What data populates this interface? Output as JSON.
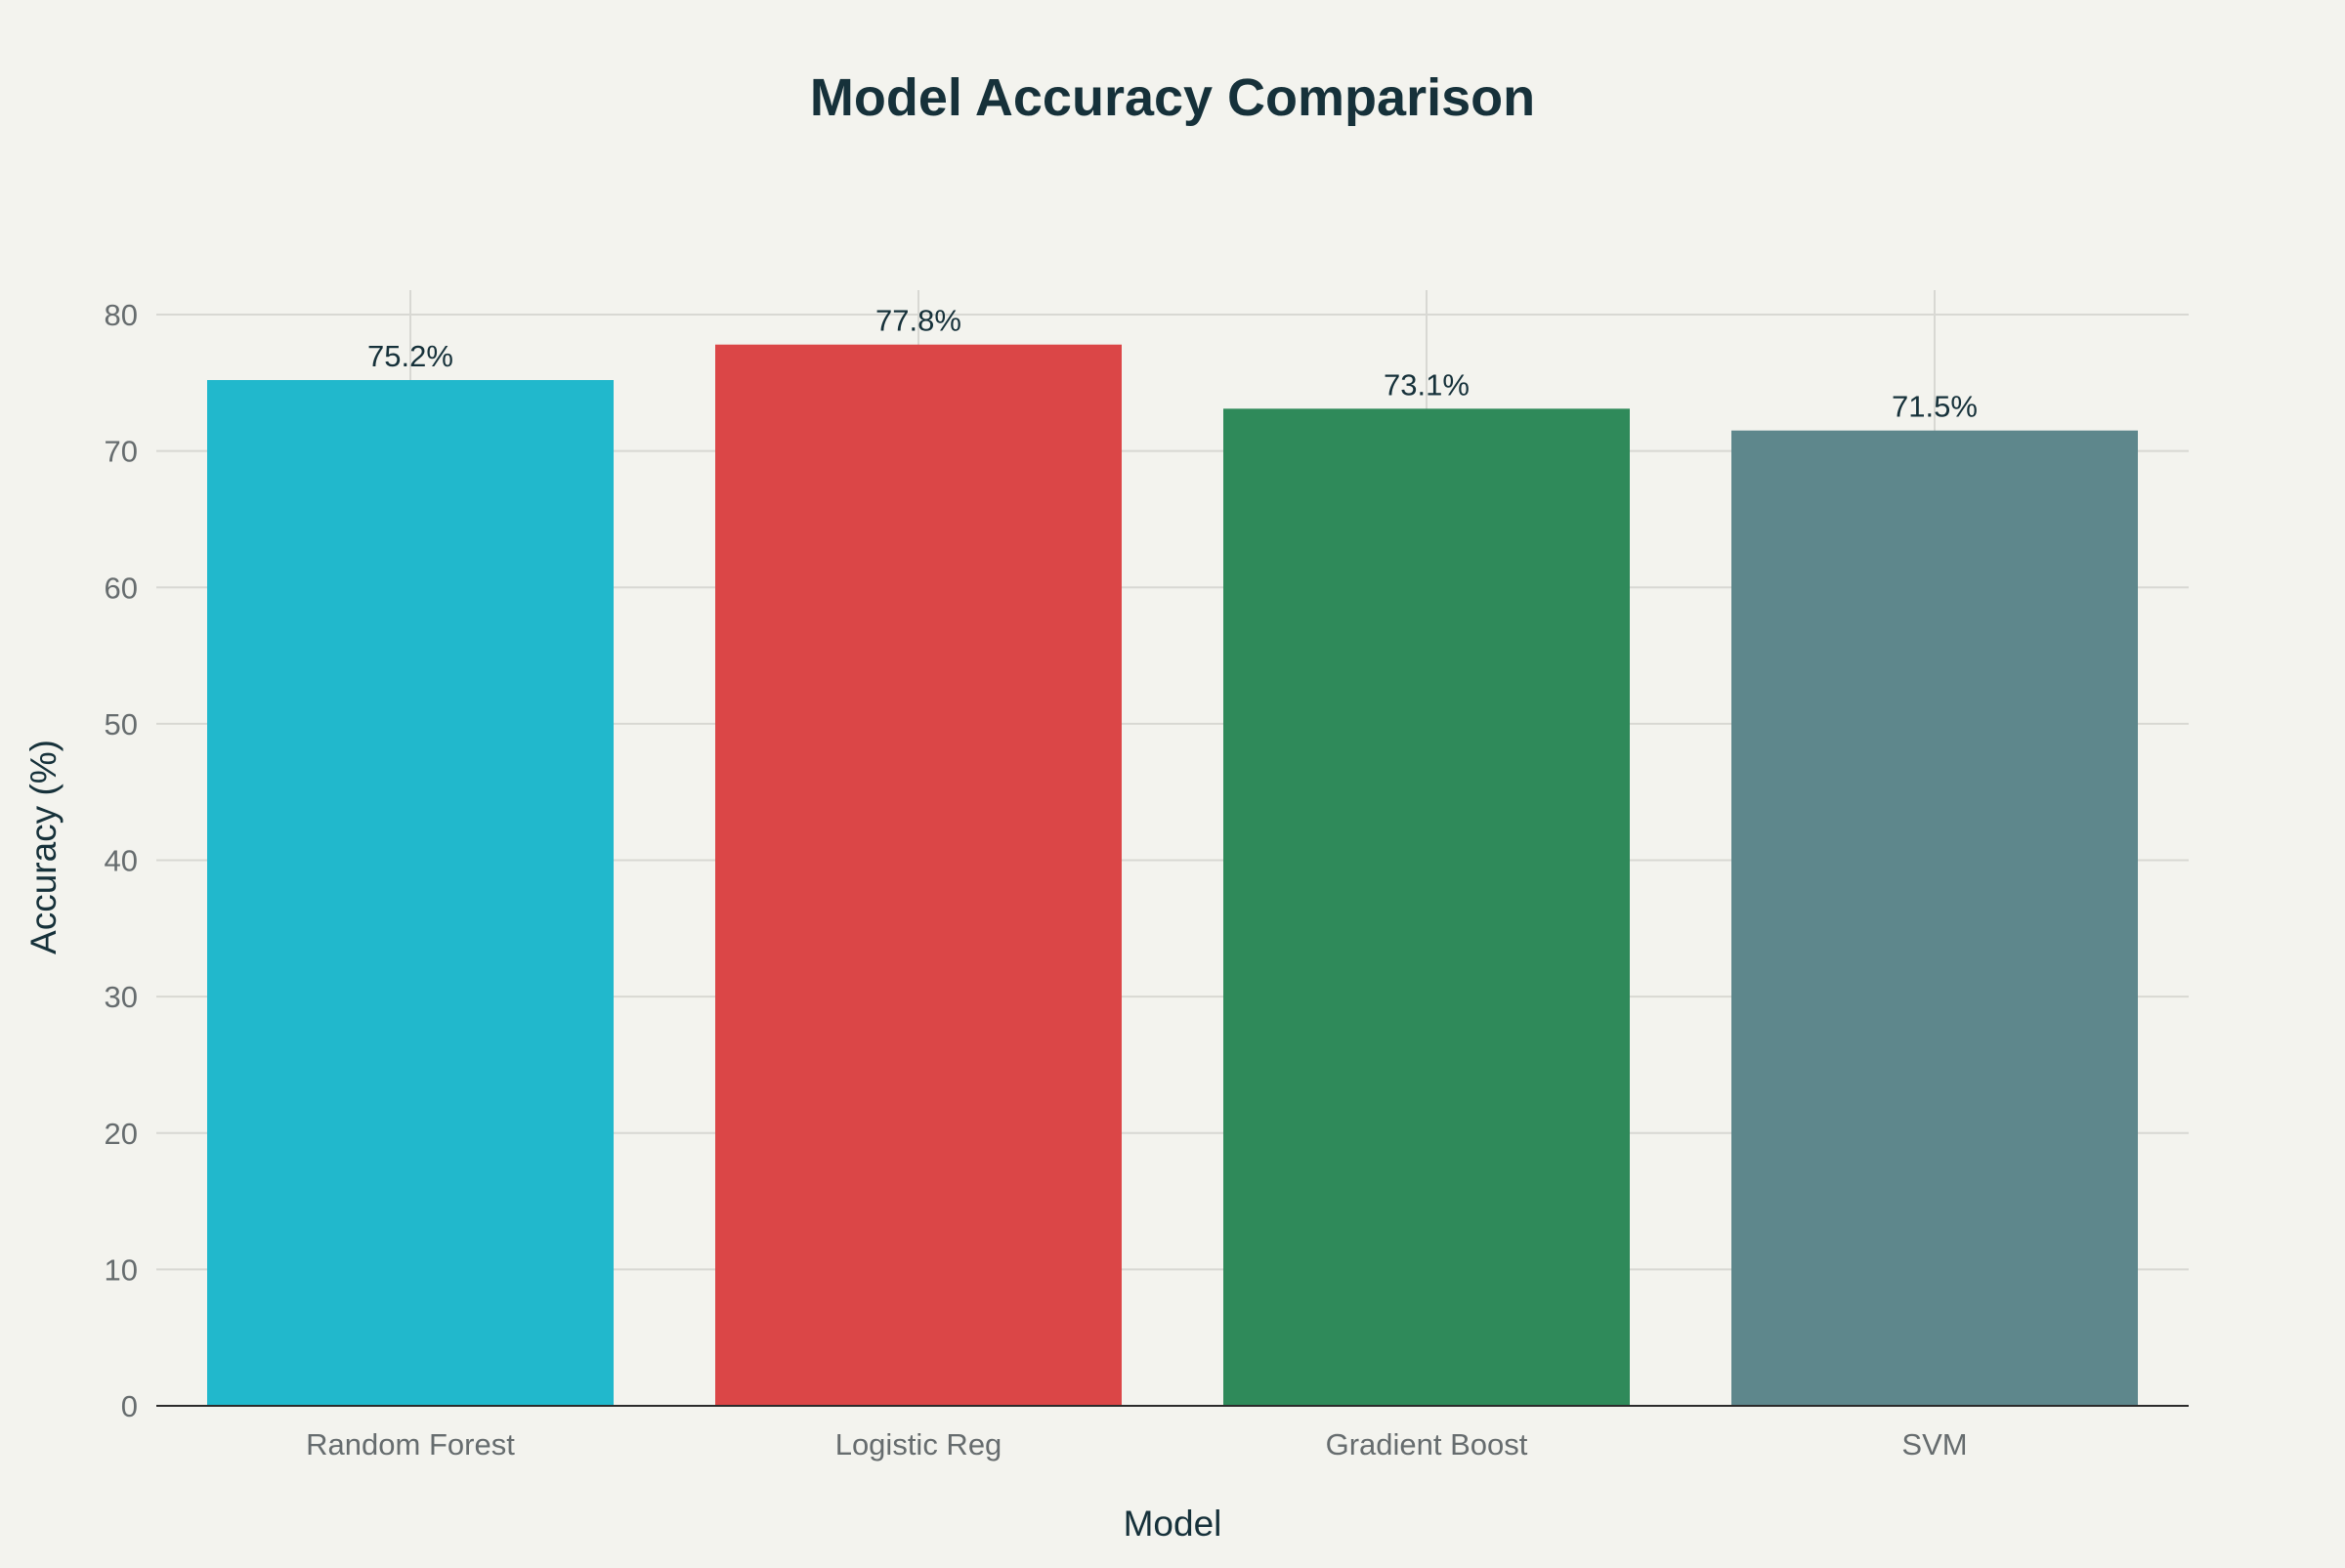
{
  "chart_data": {
    "type": "bar",
    "title": "Model Accuracy Comparison",
    "xlabel": "Model",
    "ylabel": "Accuracy (%)",
    "categories": [
      "Random Forest",
      "Logistic Reg",
      "Gradient Boost",
      "SVM"
    ],
    "values": [
      75.2,
      77.8,
      73.1,
      71.5
    ],
    "data_labels": [
      "75.2%",
      "77.8%",
      "73.1%",
      "71.5%"
    ],
    "colors": [
      "#21b8cc",
      "#db4647",
      "#2f8a5a",
      "#5e878c"
    ],
    "ylim": [
      0,
      80
    ],
    "yticks": [
      0,
      10,
      20,
      30,
      40,
      50,
      60,
      70,
      80
    ],
    "grid": true,
    "legend": "none"
  }
}
